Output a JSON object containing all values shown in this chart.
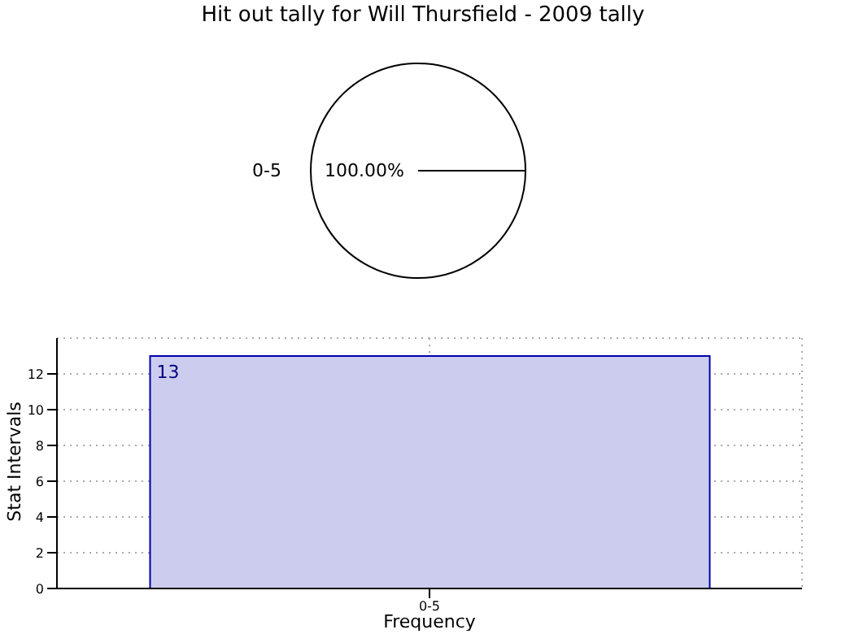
{
  "chart_data": [
    {
      "type": "pie",
      "title": "Hit out tally for Will Thursfield - 2009 tally",
      "categories": [
        "0-5"
      ],
      "values": [
        100
      ],
      "colors": [
        "#ffffff"
      ],
      "value_labels": [
        "100.00%"
      ]
    },
    {
      "type": "bar",
      "categories": [
        "0-5"
      ],
      "values": [
        13
      ],
      "color": "#ccccee",
      "value_labels": [
        "13"
      ],
      "xlabel": "Frequency",
      "ylabel": "Stat Intervals",
      "ylim": [
        0,
        14
      ],
      "yticks": [
        0,
        2,
        4,
        6,
        8,
        10,
        12
      ],
      "grid": true
    }
  ]
}
